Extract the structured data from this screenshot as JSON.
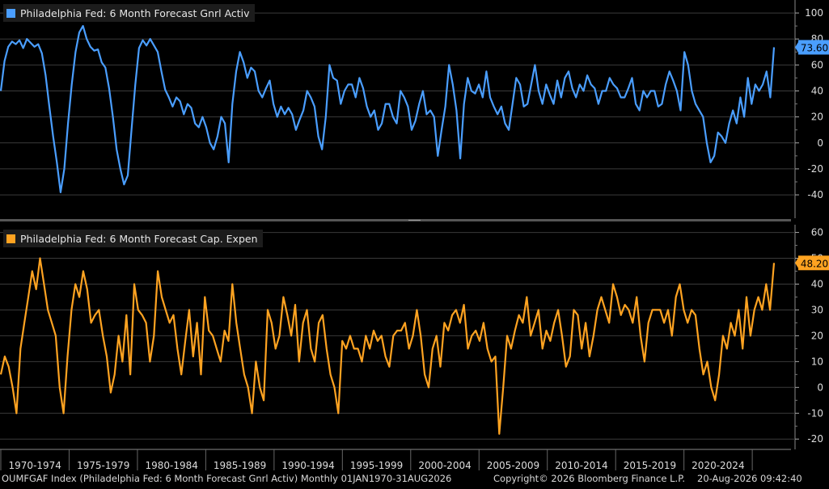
{
  "colors": {
    "background": "#000000",
    "grid": "#3a3a3a",
    "separator": "#555555",
    "series_activity": "#4a9eff",
    "series_capex": "#ffa321",
    "axis_text": "#dddddd"
  },
  "footer": {
    "ticker_text": "OUMFGAF Index (Philadelphia Fed: 6 Month Forecast Gnrl Activ) Monthly 01JAN1970-31AUG2026",
    "copyright": "Copyright© 2026 Bloomberg Finance L.P.",
    "timestamp": "20-Aug-2026 09:42:40"
  },
  "chart_data": [
    {
      "type": "line",
      "title": "Philadelphia Fed: 6 Month Forecast Gnrl Activ",
      "series": [
        {
          "name": "Philadelphia Fed: 6 Month Forecast Gnrl Activ",
          "color": "#4a9eff",
          "last_value_label": "73.60",
          "x_start": "1970-01",
          "x_end": "2026-08",
          "frequency": "monthly",
          "values": [
            40,
            63,
            74,
            78,
            76,
            79,
            73,
            80,
            77,
            74,
            76,
            69,
            52,
            28,
            5,
            -15,
            -38,
            -20,
            15,
            45,
            70,
            85,
            90,
            80,
            74,
            71,
            72,
            62,
            58,
            42,
            20,
            -5,
            -20,
            -32,
            -25,
            10,
            45,
            73,
            79,
            75,
            80,
            75,
            70,
            55,
            41,
            35,
            28,
            35,
            32,
            22,
            30,
            27,
            15,
            12,
            20,
            12,
            0,
            -5,
            5,
            20,
            15,
            -15,
            30,
            55,
            70,
            62,
            50,
            58,
            55,
            40,
            35,
            42,
            48,
            30,
            20,
            28,
            22,
            27,
            22,
            10,
            18,
            25,
            40,
            35,
            28,
            5,
            -5,
            20,
            60,
            50,
            48,
            30,
            40,
            45,
            45,
            35,
            50,
            42,
            28,
            20,
            25,
            10,
            15,
            30,
            30,
            20,
            15,
            40,
            35,
            28,
            10,
            17,
            30,
            40,
            22,
            25,
            20,
            -10,
            10,
            28,
            60,
            45,
            25,
            -12,
            30,
            50,
            40,
            38,
            45,
            35,
            55,
            35,
            28,
            22,
            28,
            15,
            10,
            30,
            50,
            45,
            28,
            30,
            45,
            60,
            40,
            30,
            45,
            37,
            30,
            48,
            35,
            50,
            55,
            42,
            35,
            45,
            40,
            52,
            45,
            42,
            30,
            40,
            40,
            50,
            45,
            42,
            35,
            35,
            42,
            50,
            30,
            25,
            40,
            35,
            40,
            40,
            28,
            30,
            45,
            55,
            48,
            40,
            25,
            70,
            60,
            40,
            30,
            25,
            20,
            0,
            -15,
            -10,
            8,
            5,
            0,
            15,
            25,
            15,
            35,
            20,
            50,
            30,
            45,
            40,
            45,
            55,
            35,
            73.6
          ]
        }
      ],
      "yticks": [
        "100",
        "80",
        "60",
        "40",
        "20",
        "0",
        "-20",
        "-40"
      ],
      "ylim": [
        -58,
        110
      ],
      "xticks": [
        "1970-1974",
        "1975-1979",
        "1980-1984",
        "1985-1989",
        "1990-1994",
        "1995-1999",
        "2000-2004",
        "2005-2009",
        "2010-2014",
        "2015-2019",
        "2020-2024"
      ],
      "grid": true,
      "legend_position": "top-left"
    },
    {
      "type": "line",
      "title": "Philadelphia Fed: 6 Month Forecast Cap. Expen",
      "series": [
        {
          "name": "Philadelphia Fed: 6 Month Forecast Cap. Expen",
          "color": "#ffa321",
          "last_value_label": "48.20",
          "x_start": "1970-01",
          "x_end": "2026-08",
          "frequency": "monthly",
          "values": [
            5,
            12,
            8,
            0,
            -10,
            15,
            25,
            35,
            45,
            38,
            50,
            40,
            30,
            25,
            20,
            0,
            -10,
            12,
            30,
            40,
            35,
            45,
            38,
            25,
            28,
            30,
            20,
            12,
            -2,
            5,
            20,
            10,
            28,
            5,
            40,
            30,
            28,
            25,
            10,
            20,
            45,
            35,
            30,
            25,
            28,
            15,
            5,
            18,
            30,
            12,
            25,
            5,
            35,
            22,
            20,
            15,
            10,
            22,
            18,
            40,
            25,
            15,
            5,
            0,
            -10,
            10,
            0,
            -5,
            30,
            25,
            15,
            20,
            35,
            28,
            20,
            32,
            10,
            25,
            30,
            15,
            10,
            25,
            28,
            15,
            5,
            0,
            -10,
            18,
            15,
            20,
            15,
            15,
            10,
            20,
            15,
            22,
            18,
            20,
            12,
            8,
            20,
            22,
            22,
            25,
            15,
            20,
            30,
            20,
            5,
            0,
            15,
            20,
            8,
            25,
            22,
            28,
            30,
            25,
            32,
            15,
            20,
            22,
            18,
            25,
            15,
            10,
            12,
            -18,
            0,
            20,
            15,
            22,
            28,
            25,
            35,
            20,
            25,
            30,
            15,
            22,
            18,
            25,
            30,
            20,
            8,
            12,
            30,
            28,
            15,
            25,
            12,
            20,
            30,
            35,
            30,
            25,
            40,
            35,
            28,
            32,
            30,
            25,
            35,
            20,
            10,
            25,
            30,
            30,
            30,
            25,
            30,
            20,
            35,
            40,
            30,
            25,
            30,
            28,
            15,
            5,
            10,
            0,
            -5,
            5,
            20,
            15,
            25,
            20,
            30,
            15,
            35,
            20,
            30,
            35,
            30,
            40,
            30,
            48.2
          ]
        }
      ],
      "yticks": [
        "60",
        "50",
        "40",
        "30",
        "20",
        "10",
        "0",
        "-10",
        "-20"
      ],
      "ylim": [
        -24,
        63
      ],
      "xticks": [
        "1970-1974",
        "1975-1979",
        "1980-1984",
        "1985-1989",
        "1990-1994",
        "1995-1999",
        "2000-2004",
        "2005-2009",
        "2010-2014",
        "2015-2019",
        "2020-2024"
      ],
      "grid": true,
      "legend_position": "top-left"
    }
  ]
}
